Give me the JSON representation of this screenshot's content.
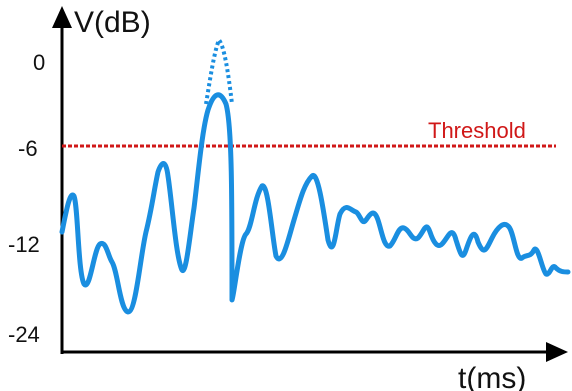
{
  "diagram": {
    "y_axis_label": "V(dB)",
    "x_axis_label": "t(ms)",
    "y_ticks": [
      "0",
      "-6",
      "-12",
      "-24"
    ],
    "threshold_label": "Threshold",
    "colors": {
      "signal": "#1a8ee0",
      "threshold": "#d01818",
      "axis": "#000000"
    },
    "has_threshold_line": true,
    "has_dotted_peak": true
  }
}
